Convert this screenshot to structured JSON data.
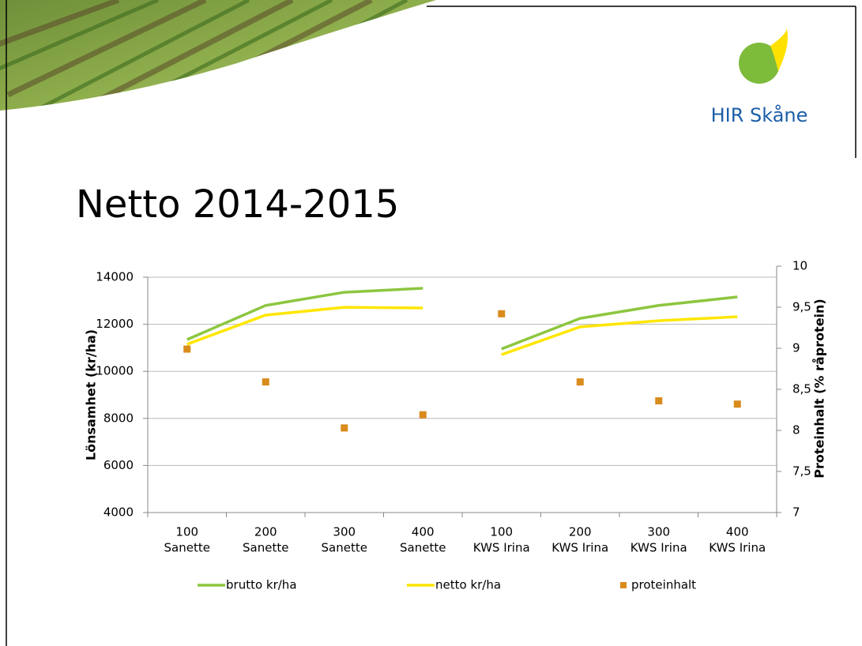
{
  "logo": {
    "text": "HIR Skåne"
  },
  "chart_data": {
    "type": "line",
    "title": "Netto 2014-2015",
    "categories": [
      [
        "100",
        "Sanette"
      ],
      [
        "200",
        "Sanette"
      ],
      [
        "300",
        "Sanette"
      ],
      [
        "400",
        "Sanette"
      ],
      [
        "100",
        "KWS Irina"
      ],
      [
        "200",
        "KWS Irina"
      ],
      [
        "300",
        "KWS Irina"
      ],
      [
        "400",
        "KWS Irina"
      ]
    ],
    "y_label": "Lönsamhet (kr/ha)",
    "y2_label": "Proteinhalt (% råprotein)",
    "ylim": [
      4000,
      14000
    ],
    "yticks": [
      4000,
      6000,
      8000,
      10000,
      12000,
      14000
    ],
    "y2lim": [
      7,
      10
    ],
    "y2ticks": [
      7,
      {
        "value": 7.5,
        "label": "7,5"
      },
      8,
      {
        "value": 8.5,
        "label": "8,5"
      },
      9,
      {
        "value": 9.5,
        "label": "9,5"
      },
      10
    ],
    "grid": true,
    "legend": "bottom",
    "series": [
      {
        "name": "brutto kr/ha",
        "type": "line",
        "color": "#8cc63f",
        "values": [
          11350,
          12800,
          13360,
          13530,
          10950,
          12250,
          12800,
          13160
        ]
      },
      {
        "name": "netto kr/ha",
        "type": "line",
        "color": "#ffe600",
        "values": [
          11150,
          12390,
          12720,
          12690,
          10710,
          11890,
          12150,
          12320
        ]
      },
      {
        "name": "proteinhalt",
        "type": "scatter",
        "axis": "y2",
        "color": "#d98b1c",
        "values": [
          8.99,
          8.59,
          8.03,
          8.19,
          9.42,
          8.59,
          8.36,
          8.32
        ]
      }
    ]
  }
}
